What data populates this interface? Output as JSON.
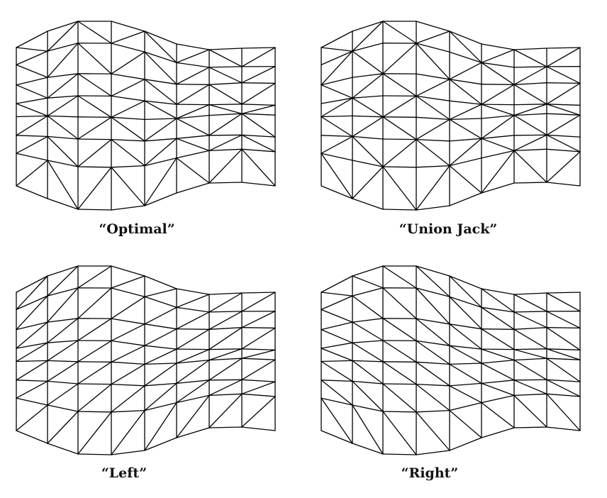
{
  "stroke_color": "#000000",
  "meshes": [
    {
      "caption": "“Optimal”",
      "pattern": "optimal"
    },
    {
      "caption": "“Union Jack”",
      "pattern": "unionjack"
    },
    {
      "caption": "“Left”",
      "pattern": "left"
    },
    {
      "caption": "“Right”",
      "pattern": "right"
    }
  ]
}
